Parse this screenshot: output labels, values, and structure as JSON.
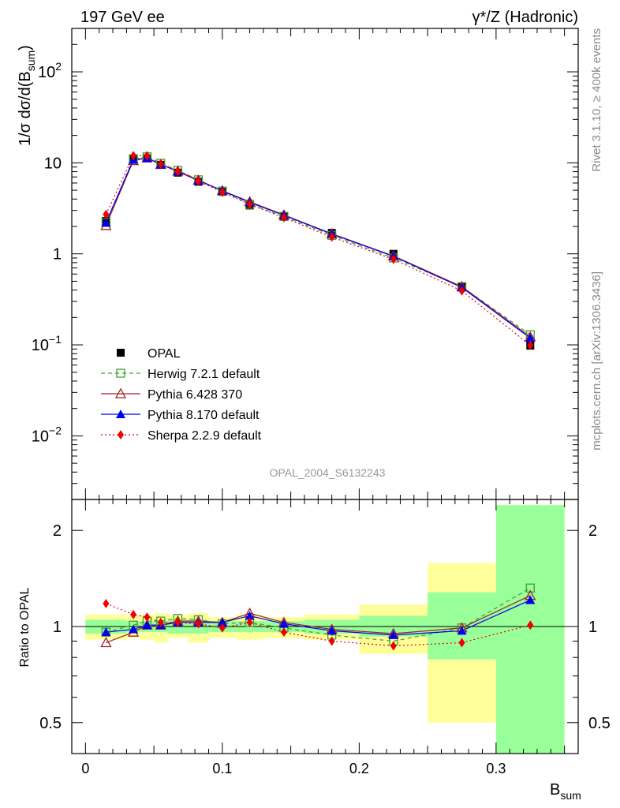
{
  "chart_data": {
    "type": "line",
    "title_left": "197 GeV ee",
    "title_right": "γ*/Z (Hadronic)",
    "analysis_label": "OPAL_2004_S6132243",
    "side_text_top": "Rivet 3.1.10, ≥ 400k events",
    "side_text_bottom": "mcplots.cern.ch [arXiv:1306.3436]",
    "x_axis_label": {
      "main": "B",
      "sub": "sum"
    },
    "y_axis_label": {
      "main": "1/σ dσ/d(B",
      "sub": "sum",
      "close": ")"
    },
    "ratio_axis_label": "Ratio to OPAL",
    "x_ticks": [
      {
        "v": 0,
        "label": "0"
      },
      {
        "v": 0.1,
        "label": "0.1"
      },
      {
        "v": 0.2,
        "label": "0.2"
      },
      {
        "v": 0.3,
        "label": "0.3"
      }
    ],
    "xlim": [
      -0.01,
      0.36
    ],
    "y_main_log_range": [
      0.002,
      300
    ],
    "y_main_ticks": [
      {
        "v": 0.01,
        "base": "10",
        "exp": "−2"
      },
      {
        "v": 0.1,
        "base": "10",
        "exp": "−1"
      },
      {
        "v": 1,
        "base": "1",
        "exp": ""
      },
      {
        "v": 10,
        "base": "10",
        "exp": ""
      },
      {
        "v": 100,
        "base": "10",
        "exp": "2"
      }
    ],
    "ratio_log_range": [
      0.4,
      2.5
    ],
    "ratio_ticks": [
      {
        "v": 0.5,
        "label": "0.5"
      },
      {
        "v": 1,
        "label": "1"
      },
      {
        "v": 2,
        "label": "2"
      }
    ],
    "bins": [
      [
        0,
        0.03
      ],
      [
        0.03,
        0.04
      ],
      [
        0.04,
        0.05
      ],
      [
        0.05,
        0.06
      ],
      [
        0.06,
        0.075
      ],
      [
        0.075,
        0.09
      ],
      [
        0.09,
        0.11
      ],
      [
        0.11,
        0.13
      ],
      [
        0.13,
        0.16
      ],
      [
        0.16,
        0.2
      ],
      [
        0.2,
        0.25
      ],
      [
        0.25,
        0.3
      ],
      [
        0.3,
        0.35
      ]
    ],
    "x": [
      0.015,
      0.035,
      0.045,
      0.055,
      0.0675,
      0.0825,
      0.1,
      0.12,
      0.145,
      0.18,
      0.225,
      0.275,
      0.325
    ],
    "band_stat_ratio": [
      [
        0.95,
        1.05
      ],
      [
        0.96,
        1.04
      ],
      [
        0.96,
        1.04
      ],
      [
        0.96,
        1.04
      ],
      [
        0.95,
        1.05
      ],
      [
        0.95,
        1.05
      ],
      [
        0.96,
        1.04
      ],
      [
        0.96,
        1.04
      ],
      [
        0.96,
        1.04
      ],
      [
        0.95,
        1.05
      ],
      [
        0.93,
        1.08
      ],
      [
        0.79,
        1.28
      ],
      [
        0.35,
        2.4
      ]
    ],
    "band_total_ratio": [
      [
        0.91,
        1.09
      ],
      [
        0.92,
        1.08
      ],
      [
        0.91,
        1.09
      ],
      [
        0.89,
        1.1
      ],
      [
        0.92,
        1.09
      ],
      [
        0.89,
        1.1
      ],
      [
        0.92,
        1.07
      ],
      [
        0.91,
        1.09
      ],
      [
        0.92,
        1.07
      ],
      [
        0.91,
        1.09
      ],
      [
        0.82,
        1.17
      ],
      [
        0.5,
        1.58
      ],
      [
        0.35,
        2.4
      ]
    ],
    "series": [
      {
        "name": "OPAL",
        "color": "#000000",
        "marker": "square-filled",
        "dash": "none",
        "values": [
          2.3,
          11,
          11.2,
          9.5,
          7.8,
          6.2,
          4.8,
          3.4,
          2.6,
          1.7,
          1.0,
          0.44,
          0.098
        ]
      },
      {
        "name": "Herwig 7.2.1 default",
        "color": "#3f9f2f",
        "marker": "square-open",
        "dash": "5,4",
        "ratio": [
          0.96,
          1.01,
          1.04,
          1.04,
          1.06,
          1.05,
          1.02,
          1.03,
          0.99,
          0.94,
          0.9,
          0.99,
          1.32
        ]
      },
      {
        "name": "Pythia 6.428 370",
        "color": "#a3202c",
        "marker": "triangle-open",
        "dash": "none",
        "ratio": [
          0.89,
          0.96,
          1.01,
          1.01,
          1.04,
          1.04,
          1.03,
          1.1,
          1.03,
          0.98,
          0.95,
          0.99,
          1.25
        ]
      },
      {
        "name": "Pythia 8.170 default",
        "color": "#0000ee",
        "marker": "triangle-filled",
        "dash": "none",
        "ratio": [
          0.96,
          0.98,
          1.01,
          1.01,
          1.03,
          1.03,
          1.03,
          1.08,
          1.02,
          0.97,
          0.94,
          0.97,
          1.21
        ]
      },
      {
        "name": "Sherpa 2.2.9 default",
        "color": "#ee0000",
        "marker": "diamond-filled",
        "dash": "2,3",
        "ratio": [
          1.18,
          1.09,
          1.07,
          1.03,
          1.03,
          1.02,
          0.99,
          1.03,
          0.96,
          0.9,
          0.87,
          0.89,
          1.01
        ]
      }
    ]
  }
}
